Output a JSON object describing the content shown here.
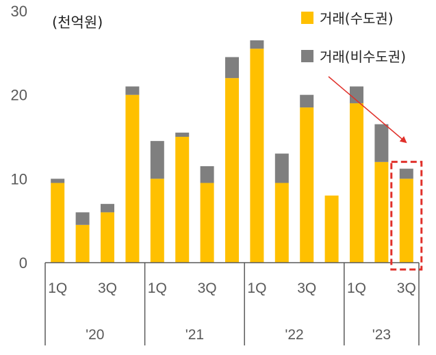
{
  "chart_data": {
    "type": "bar",
    "stacked": true,
    "unit_label": "(천억원)",
    "ylim": [
      0,
      30
    ],
    "yticks": [
      0,
      10,
      20,
      30
    ],
    "grid": false,
    "legend_position": "top-right",
    "categories": [
      "'20 1Q",
      "'20 2Q",
      "'20 3Q",
      "'20 4Q",
      "'21 1Q",
      "'21 2Q",
      "'21 3Q",
      "'21 4Q",
      "'22 1Q",
      "'22 2Q",
      "'22 3Q",
      "'22 4Q",
      "'23 1Q",
      "'23 2Q",
      "'23 3Q"
    ],
    "quarter_labels": [
      "1Q",
      "",
      "3Q",
      "",
      "1Q",
      "",
      "3Q",
      "",
      "1Q",
      "",
      "3Q",
      "",
      "1Q",
      "",
      "3Q"
    ],
    "year_labels": [
      "'20",
      "'21",
      "'22",
      "'23"
    ],
    "series": [
      {
        "name": "거래(수도권)",
        "color": "#FFC000",
        "values": [
          9.5,
          4.5,
          6.0,
          20.0,
          10.0,
          15.0,
          9.5,
          22.0,
          25.5,
          9.5,
          18.5,
          8.0,
          19.0,
          12.0,
          10.0
        ]
      },
      {
        "name": "거래(비수도권)",
        "color": "#7F7F7F",
        "values": [
          0.5,
          1.5,
          1.0,
          1.0,
          4.5,
          0.5,
          2.0,
          2.5,
          1.0,
          3.5,
          1.5,
          0.0,
          2.0,
          4.5,
          1.2
        ]
      }
    ],
    "highlight_index": 14,
    "trend_arrow": "downward"
  }
}
